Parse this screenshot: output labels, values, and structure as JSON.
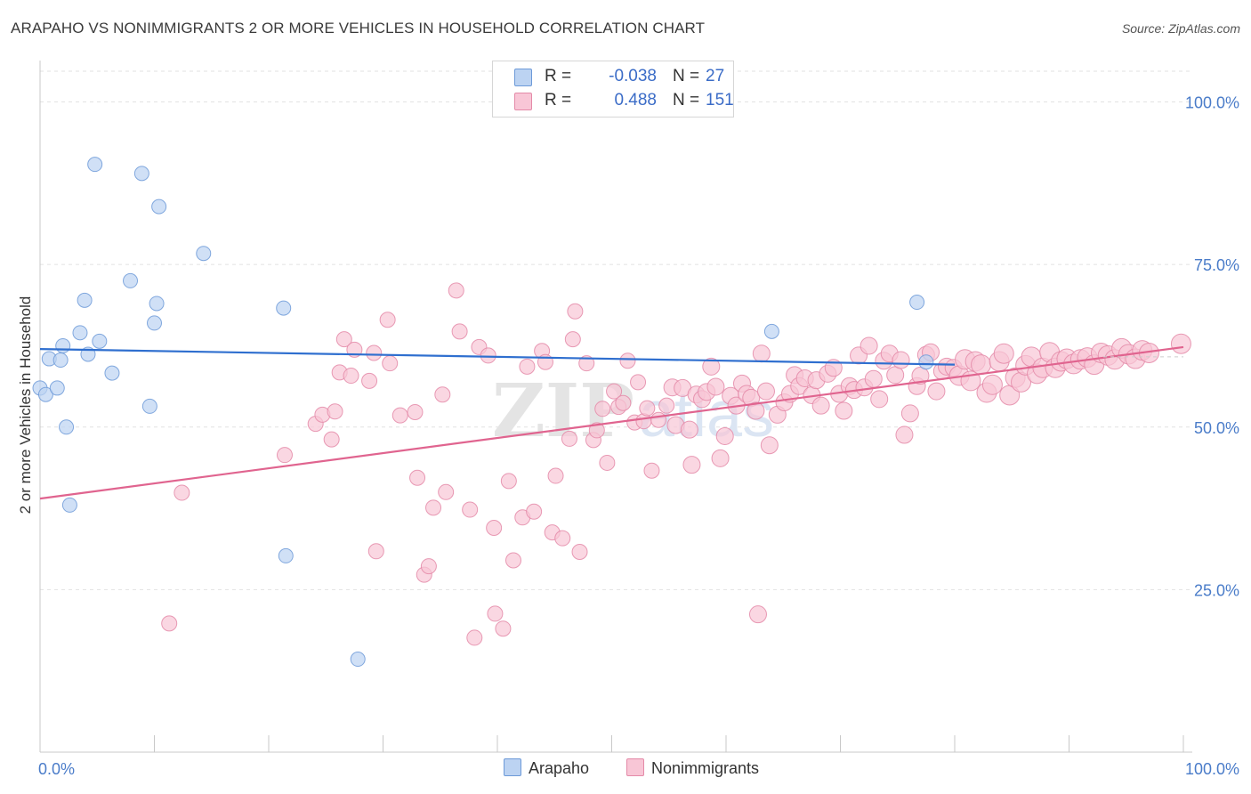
{
  "title": "ARAPAHO VS NONIMMIGRANTS 2 OR MORE VEHICLES IN HOUSEHOLD CORRELATION CHART",
  "source": "Source: ZipAtlas.com",
  "watermark": {
    "zip": "ZIP",
    "atlas": "atlas"
  },
  "legend": {
    "r_label": "R =",
    "n_label": "N =",
    "rows": [
      {
        "name": "Arapaho",
        "r": "-0.038",
        "n": "27",
        "fill": "#bcd3f2",
        "stroke": "#6d9ad8"
      },
      {
        "name": "Nonimmigrants",
        "r": "0.488",
        "n": "151",
        "fill": "#f8c6d6",
        "stroke": "#e48aa8"
      }
    ]
  },
  "chart_data": {
    "type": "scatter",
    "xlabel": "",
    "ylabel": "2 or more Vehicles in Household",
    "xlim": [
      0,
      100
    ],
    "ylim": [
      0,
      105
    ],
    "x_tick_labels": [
      "0.0%",
      "100.0%"
    ],
    "y_ticks": [
      25,
      50,
      75,
      100
    ],
    "y_tick_labels": [
      "25.0%",
      "50.0%",
      "75.0%",
      "100.0%"
    ],
    "grid": true,
    "series": [
      {
        "name": "Arapaho",
        "color": "#6d9ad8",
        "fill": "#bcd3f2",
        "trend": {
          "x": [
            0,
            80
          ],
          "y": [
            62.0,
            59.6
          ]
        },
        "points": [
          {
            "x": 0.0,
            "y": 56.0
          },
          {
            "x": 0.5,
            "y": 55.0
          },
          {
            "x": 0.8,
            "y": 60.5
          },
          {
            "x": 1.5,
            "y": 56.0
          },
          {
            "x": 1.8,
            "y": 60.3
          },
          {
            "x": 2.0,
            "y": 62.5
          },
          {
            "x": 2.3,
            "y": 50.0
          },
          {
            "x": 2.6,
            "y": 38.0
          },
          {
            "x": 3.5,
            "y": 64.5
          },
          {
            "x": 3.9,
            "y": 69.5
          },
          {
            "x": 4.2,
            "y": 61.2
          },
          {
            "x": 4.8,
            "y": 90.4
          },
          {
            "x": 5.2,
            "y": 63.2
          },
          {
            "x": 6.3,
            "y": 58.3
          },
          {
            "x": 7.9,
            "y": 72.5
          },
          {
            "x": 8.9,
            "y": 89.0
          },
          {
            "x": 9.6,
            "y": 53.2
          },
          {
            "x": 10.0,
            "y": 66.0
          },
          {
            "x": 10.2,
            "y": 69.0
          },
          {
            "x": 10.4,
            "y": 83.9
          },
          {
            "x": 14.3,
            "y": 76.7
          },
          {
            "x": 21.3,
            "y": 68.3
          },
          {
            "x": 21.5,
            "y": 30.2
          },
          {
            "x": 27.8,
            "y": 14.3
          },
          {
            "x": 64.0,
            "y": 64.7
          },
          {
            "x": 76.7,
            "y": 69.2
          },
          {
            "x": 77.5,
            "y": 60.0
          }
        ]
      },
      {
        "name": "Nonimmigrants",
        "color": "#e48aa8",
        "fill": "#f8c6d6",
        "trend": {
          "x": [
            0,
            100
          ],
          "y": [
            39.0,
            62.3
          ]
        },
        "points": [
          {
            "x": 11.3,
            "y": 19.8
          },
          {
            "x": 12.4,
            "y": 39.9
          },
          {
            "x": 21.4,
            "y": 45.7
          },
          {
            "x": 24.1,
            "y": 50.5
          },
          {
            "x": 24.7,
            "y": 51.9
          },
          {
            "x": 25.5,
            "y": 48.1
          },
          {
            "x": 25.8,
            "y": 52.4
          },
          {
            "x": 26.2,
            "y": 58.4
          },
          {
            "x": 26.6,
            "y": 63.5
          },
          {
            "x": 27.2,
            "y": 57.9
          },
          {
            "x": 27.5,
            "y": 61.9
          },
          {
            "x": 28.8,
            "y": 57.1
          },
          {
            "x": 29.2,
            "y": 61.4
          },
          {
            "x": 29.4,
            "y": 30.9
          },
          {
            "x": 30.4,
            "y": 66.5
          },
          {
            "x": 30.6,
            "y": 59.8
          },
          {
            "x": 31.5,
            "y": 51.8
          },
          {
            "x": 32.8,
            "y": 52.3
          },
          {
            "x": 33.0,
            "y": 42.2
          },
          {
            "x": 33.6,
            "y": 27.3
          },
          {
            "x": 34.0,
            "y": 28.6
          },
          {
            "x": 34.4,
            "y": 37.6
          },
          {
            "x": 35.2,
            "y": 55.0
          },
          {
            "x": 35.5,
            "y": 40.0
          },
          {
            "x": 36.4,
            "y": 71.0
          },
          {
            "x": 36.7,
            "y": 64.7
          },
          {
            "x": 37.6,
            "y": 37.3
          },
          {
            "x": 38.0,
            "y": 17.6
          },
          {
            "x": 38.4,
            "y": 62.3
          },
          {
            "x": 39.2,
            "y": 61.0
          },
          {
            "x": 39.7,
            "y": 34.5
          },
          {
            "x": 39.8,
            "y": 21.3
          },
          {
            "x": 40.5,
            "y": 19.0
          },
          {
            "x": 41.0,
            "y": 41.7
          },
          {
            "x": 41.4,
            "y": 29.5
          },
          {
            "x": 42.2,
            "y": 36.1
          },
          {
            "x": 42.6,
            "y": 59.3
          },
          {
            "x": 43.2,
            "y": 37.0
          },
          {
            "x": 43.9,
            "y": 61.7
          },
          {
            "x": 44.2,
            "y": 60.0
          },
          {
            "x": 44.8,
            "y": 33.8
          },
          {
            "x": 45.1,
            "y": 42.5
          },
          {
            "x": 45.7,
            "y": 32.9
          },
          {
            "x": 46.3,
            "y": 48.2
          },
          {
            "x": 46.6,
            "y": 63.5
          },
          {
            "x": 46.8,
            "y": 67.8
          },
          {
            "x": 47.2,
            "y": 30.8
          },
          {
            "x": 47.8,
            "y": 59.8
          },
          {
            "x": 48.4,
            "y": 48.0
          },
          {
            "x": 48.7,
            "y": 49.5
          },
          {
            "x": 49.2,
            "y": 52.8
          },
          {
            "x": 49.6,
            "y": 44.5
          },
          {
            "x": 50.2,
            "y": 55.5
          },
          {
            "x": 50.6,
            "y": 53.1
          },
          {
            "x": 51.0,
            "y": 53.7
          },
          {
            "x": 51.4,
            "y": 60.2
          },
          {
            "x": 52.0,
            "y": 50.7
          },
          {
            "x": 52.3,
            "y": 56.9
          },
          {
            "x": 52.8,
            "y": 50.9
          },
          {
            "x": 53.1,
            "y": 52.9
          },
          {
            "x": 53.5,
            "y": 43.3
          },
          {
            "x": 54.1,
            "y": 51.1
          },
          {
            "x": 54.8,
            "y": 53.3
          },
          {
            "x": 55.3,
            "y": 56.1
          },
          {
            "x": 55.6,
            "y": 50.3
          },
          {
            "x": 56.2,
            "y": 56.0
          },
          {
            "x": 56.8,
            "y": 49.6
          },
          {
            "x": 57.0,
            "y": 44.2
          },
          {
            "x": 57.4,
            "y": 55.0
          },
          {
            "x": 57.9,
            "y": 54.3
          },
          {
            "x": 58.3,
            "y": 55.4
          },
          {
            "x": 58.7,
            "y": 59.3
          },
          {
            "x": 59.1,
            "y": 56.2
          },
          {
            "x": 59.5,
            "y": 45.2
          },
          {
            "x": 59.9,
            "y": 48.6
          },
          {
            "x": 60.4,
            "y": 54.8
          },
          {
            "x": 60.9,
            "y": 53.3
          },
          {
            "x": 61.4,
            "y": 56.7
          },
          {
            "x": 61.8,
            "y": 55.1
          },
          {
            "x": 62.2,
            "y": 54.5
          },
          {
            "x": 62.6,
            "y": 52.5
          },
          {
            "x": 63.1,
            "y": 61.3
          },
          {
            "x": 63.5,
            "y": 55.5
          },
          {
            "x": 63.8,
            "y": 47.2
          },
          {
            "x": 64.5,
            "y": 51.9
          },
          {
            "x": 65.1,
            "y": 53.8
          },
          {
            "x": 65.6,
            "y": 55.1
          },
          {
            "x": 66.0,
            "y": 58.0
          },
          {
            "x": 66.4,
            "y": 56.3
          },
          {
            "x": 66.9,
            "y": 57.5
          },
          {
            "x": 67.5,
            "y": 54.9
          },
          {
            "x": 67.9,
            "y": 57.2
          },
          {
            "x": 68.3,
            "y": 53.3
          },
          {
            "x": 68.9,
            "y": 58.2
          },
          {
            "x": 69.4,
            "y": 59.1
          },
          {
            "x": 69.9,
            "y": 55.1
          },
          {
            "x": 70.3,
            "y": 52.5
          },
          {
            "x": 70.8,
            "y": 56.3
          },
          {
            "x": 71.2,
            "y": 55.7
          },
          {
            "x": 71.6,
            "y": 61.0
          },
          {
            "x": 72.1,
            "y": 56.1
          },
          {
            "x": 72.5,
            "y": 62.5
          },
          {
            "x": 72.9,
            "y": 57.4
          },
          {
            "x": 73.4,
            "y": 54.3
          },
          {
            "x": 73.8,
            "y": 60.2
          },
          {
            "x": 74.3,
            "y": 61.3
          },
          {
            "x": 74.8,
            "y": 58.0
          },
          {
            "x": 75.3,
            "y": 60.3
          },
          {
            "x": 75.6,
            "y": 48.8
          },
          {
            "x": 76.1,
            "y": 52.1
          },
          {
            "x": 76.7,
            "y": 56.3
          },
          {
            "x": 77.0,
            "y": 57.9
          },
          {
            "x": 77.5,
            "y": 61.1
          },
          {
            "x": 77.9,
            "y": 61.5
          },
          {
            "x": 78.4,
            "y": 55.5
          },
          {
            "x": 78.9,
            "y": 58.6
          },
          {
            "x": 79.3,
            "y": 59.3
          },
          {
            "x": 79.9,
            "y": 59.1
          },
          {
            "x": 80.4,
            "y": 57.9
          },
          {
            "x": 80.9,
            "y": 60.4
          },
          {
            "x": 81.4,
            "y": 57.1
          },
          {
            "x": 81.8,
            "y": 60.1
          },
          {
            "x": 82.3,
            "y": 59.6
          },
          {
            "x": 82.8,
            "y": 55.3
          },
          {
            "x": 83.3,
            "y": 56.5
          },
          {
            "x": 83.9,
            "y": 60.1
          },
          {
            "x": 84.3,
            "y": 61.3
          },
          {
            "x": 84.8,
            "y": 54.9
          },
          {
            "x": 85.3,
            "y": 57.6
          },
          {
            "x": 85.8,
            "y": 56.9
          },
          {
            "x": 86.2,
            "y": 59.5
          },
          {
            "x": 86.7,
            "y": 60.8
          },
          {
            "x": 87.2,
            "y": 58.2
          },
          {
            "x": 87.7,
            "y": 59.1
          },
          {
            "x": 88.3,
            "y": 61.5
          },
          {
            "x": 88.8,
            "y": 59.1
          },
          {
            "x": 89.3,
            "y": 60.1
          },
          {
            "x": 89.8,
            "y": 60.5
          },
          {
            "x": 90.4,
            "y": 59.7
          },
          {
            "x": 91.0,
            "y": 60.4
          },
          {
            "x": 91.6,
            "y": 60.7
          },
          {
            "x": 92.2,
            "y": 59.6
          },
          {
            "x": 92.8,
            "y": 61.4
          },
          {
            "x": 93.4,
            "y": 61.0
          },
          {
            "x": 94.0,
            "y": 60.4
          },
          {
            "x": 94.6,
            "y": 62.1
          },
          {
            "x": 95.2,
            "y": 61.2
          },
          {
            "x": 95.8,
            "y": 60.5
          },
          {
            "x": 96.4,
            "y": 61.8
          },
          {
            "x": 97.0,
            "y": 61.4
          },
          {
            "x": 62.8,
            "y": 21.2
          },
          {
            "x": 99.8,
            "y": 62.8
          }
        ]
      }
    ]
  }
}
